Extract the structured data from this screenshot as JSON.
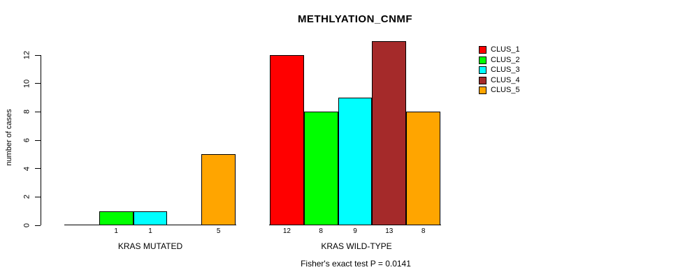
{
  "chart_data": {
    "type": "bar",
    "title": "METHLYATION_CNMF",
    "ylabel": "number of cases",
    "footnote": "Fisher's exact test P = 0.0141",
    "categories": [
      "KRAS MUTATED",
      "KRAS WILD-TYPE"
    ],
    "series": [
      {
        "name": "CLUS_1",
        "color": "#FF0000",
        "values": [
          0,
          12
        ]
      },
      {
        "name": "CLUS_2",
        "color": "#00FF00",
        "values": [
          1,
          8
        ]
      },
      {
        "name": "CLUS_3",
        "color": "#00FFFF",
        "values": [
          1,
          9
        ]
      },
      {
        "name": "CLUS_4",
        "color": "#A52A2A",
        "values": [
          0,
          13
        ]
      },
      {
        "name": "CLUS_5",
        "color": "#FFA500",
        "values": [
          5,
          8
        ]
      }
    ],
    "yticks": [
      0,
      2,
      4,
      6,
      8,
      10,
      12
    ],
    "ylim": [
      0,
      12
    ],
    "grid": false,
    "legend_position": "top-right",
    "bar_value_labels": "values shown under each nonzero bar",
    "colors": {
      "background": "#FFFFFF",
      "axis": "#000000",
      "text": "#000000"
    }
  }
}
